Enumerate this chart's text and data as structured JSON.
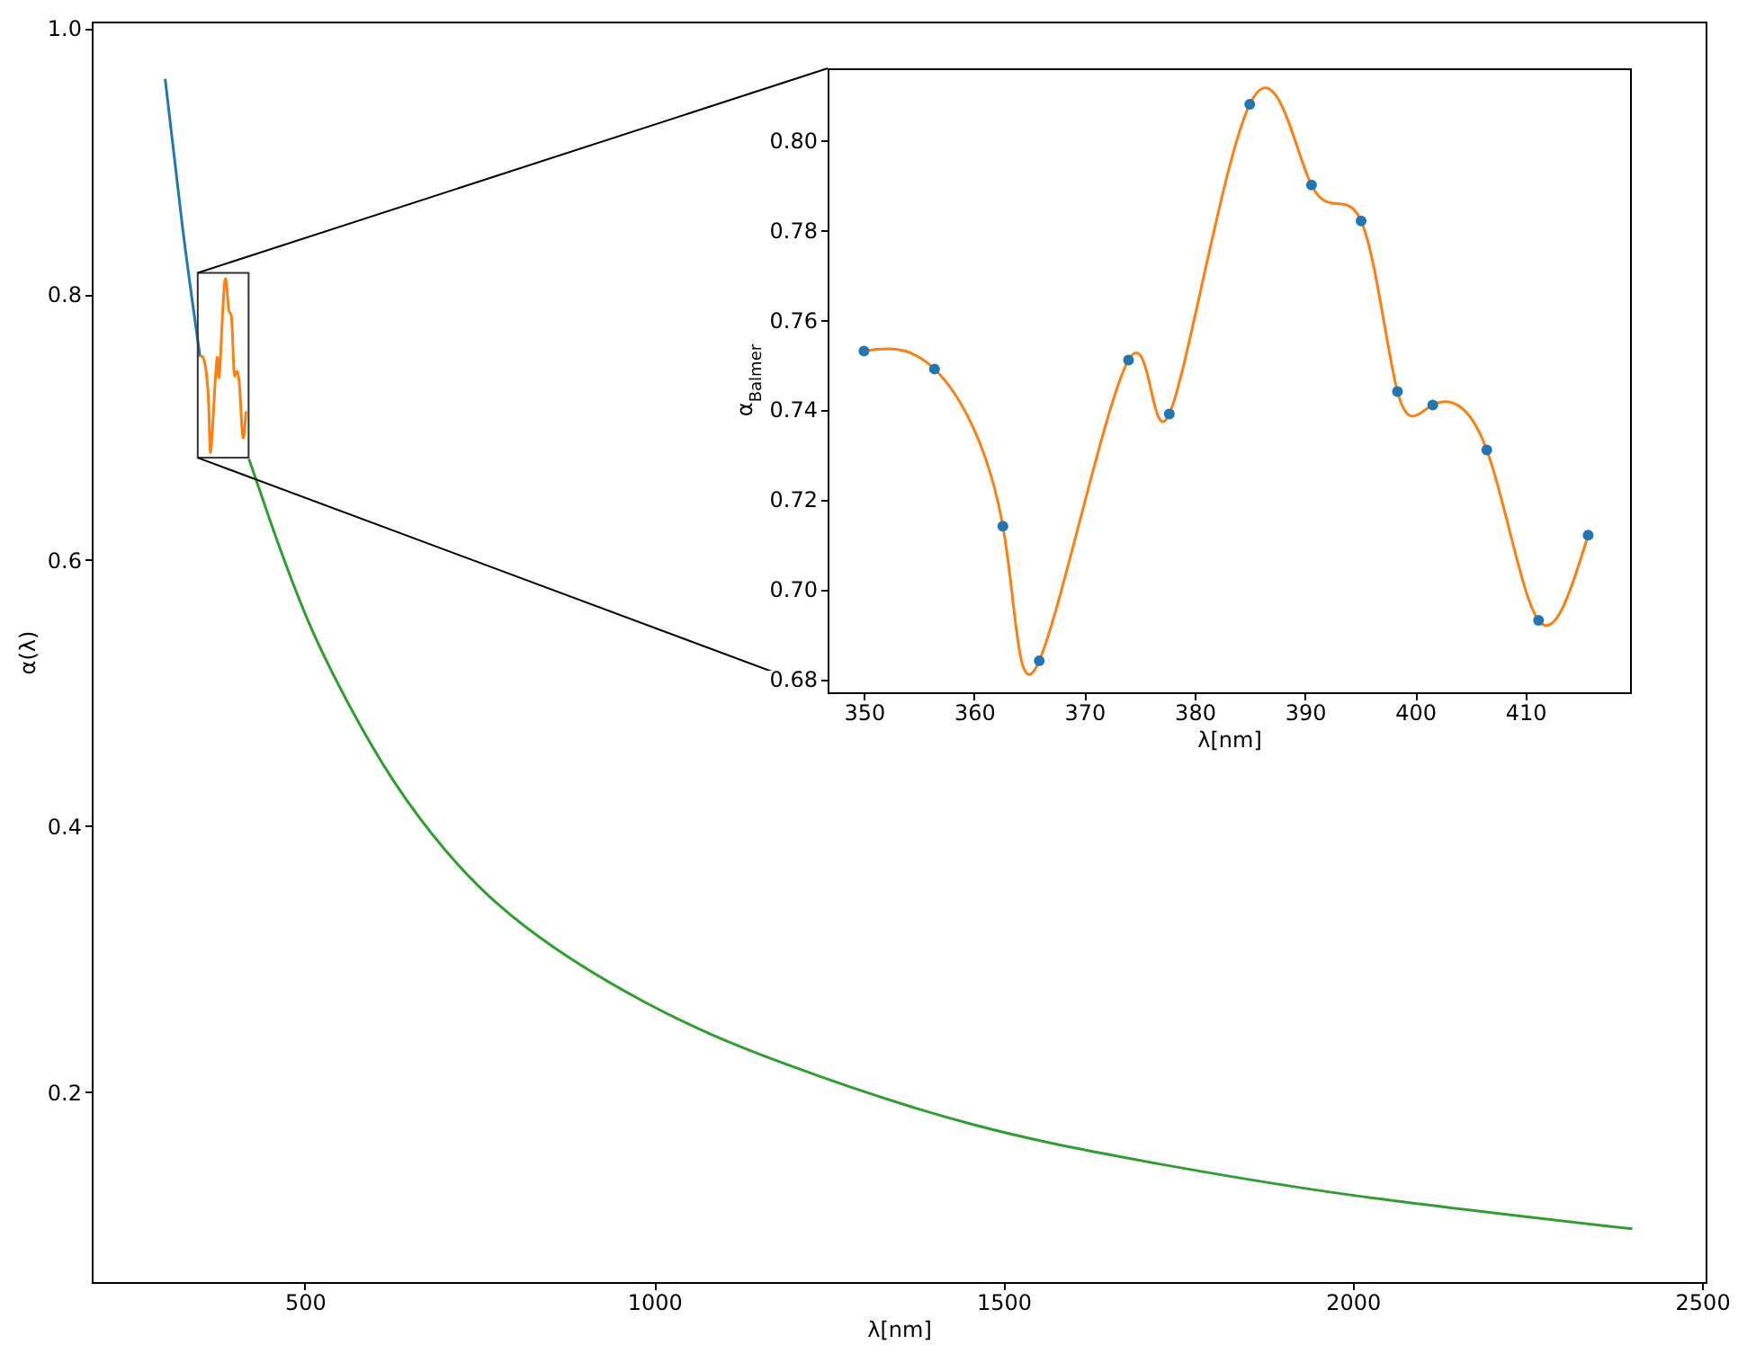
{
  "chart_data": [
    {
      "type": "line",
      "xlabel": "λ[nm]",
      "ylabel": "α(λ)",
      "xlim": [
        195,
        2505
      ],
      "ylim": [
        0.057,
        1.005
      ],
      "xticks": [
        500,
        1000,
        1500,
        2000,
        2500
      ],
      "yticks": [
        0.2,
        0.4,
        0.6,
        0.8,
        {
          "value": 1.0,
          "label": "1.0"
        }
      ],
      "series": [
        {
          "color": "#1f77b4",
          "x": [
            300,
            325,
            350
          ],
          "values": [
            0.962,
            0.85,
            0.753
          ]
        },
        {
          "color": "#ff7f0e",
          "x": [
            350,
            356.4,
            362.6,
            365.9,
            374.0,
            377.7,
            385.0,
            390.6,
            395.1,
            398.4,
            401.6,
            406.5,
            411.2,
            415.7
          ],
          "values": [
            0.753,
            0.749,
            0.714,
            0.684,
            0.751,
            0.739,
            0.808,
            0.79,
            0.782,
            0.744,
            0.741,
            0.731,
            0.693,
            0.712
          ]
        },
        {
          "color": "#2ca02c",
          "x": [
            420,
            450,
            509,
            580,
            645,
            779,
            985,
            1188,
            1460,
            1732,
            2004,
            2400
          ],
          "values": [
            0.676,
            0.63,
            0.549,
            0.475,
            0.42,
            0.34,
            0.268,
            0.221,
            0.175,
            0.145,
            0.122,
            0.097
          ]
        }
      ]
    },
    {
      "type": "line",
      "xlabel": "λ[nm]",
      "ylabel": "α$_{Balmer}$",
      "xlim": [
        346.7,
        419.5
      ],
      "ylim": [
        0.677,
        0.816
      ],
      "xticks": [
        350,
        360,
        370,
        380,
        390,
        400,
        410
      ],
      "yticks": [
        {
          "value": 0.68,
          "label": "0.68"
        },
        {
          "value": 0.7,
          "label": "0.70"
        },
        {
          "value": 0.72,
          "label": "0.72"
        },
        {
          "value": 0.74,
          "label": "0.74"
        },
        {
          "value": 0.76,
          "label": "0.76"
        },
        {
          "value": 0.78,
          "label": "0.78"
        },
        {
          "value": 0.8,
          "label": "0.80"
        }
      ],
      "series": [
        {
          "color": "#ff7f0e",
          "x": [
            350,
            356.4,
            362.6,
            365.9,
            374.0,
            377.7,
            385.0,
            390.6,
            395.1,
            398.4,
            401.6,
            406.5,
            411.2,
            415.7
          ],
          "values": [
            0.753,
            0.749,
            0.714,
            0.684,
            0.751,
            0.739,
            0.808,
            0.79,
            0.782,
            0.744,
            0.741,
            0.731,
            0.693,
            0.712
          ]
        },
        {
          "type": "scatter",
          "marker": "circle",
          "color": "#1f77b4",
          "x": [
            350,
            356.4,
            362.6,
            365.9,
            374.0,
            377.7,
            385.0,
            390.6,
            395.1,
            398.4,
            401.6,
            406.5,
            411.2,
            415.7
          ],
          "values": [
            0.753,
            0.749,
            0.714,
            0.684,
            0.751,
            0.739,
            0.808,
            0.79,
            0.782,
            0.744,
            0.741,
            0.731,
            0.693,
            0.712
          ]
        }
      ]
    }
  ]
}
